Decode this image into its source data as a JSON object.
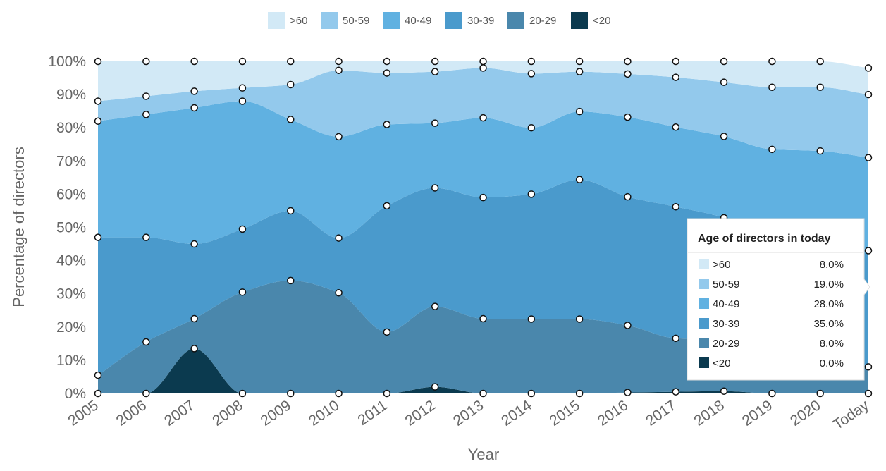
{
  "chart_data": {
    "type": "area",
    "stacking": "percent",
    "xlabel": "Year",
    "ylabel": "Percentage of directors",
    "ylim": [
      0,
      100
    ],
    "y_ticks": [
      "0%",
      "10%",
      "20%",
      "30%",
      "40%",
      "50%",
      "60%",
      "70%",
      "80%",
      "90%",
      "100%"
    ],
    "categories": [
      "2005",
      "2006",
      "2007",
      "2008",
      "2009",
      "2010",
      "2011",
      "2012",
      "2013",
      "2014",
      "2015",
      "2016",
      "2017",
      "2018",
      "2019",
      "2020",
      "Today"
    ],
    "legend_position": "top-center",
    "series": [
      {
        "name": "<20",
        "color": "#0b3a4f",
        "values": [
          0,
          0,
          13.5,
          0,
          0,
          0,
          0,
          2,
          0,
          0,
          0,
          0.3,
          0.5,
          0.7,
          0,
          0,
          0
        ]
      },
      {
        "name": "20-29",
        "color": "#4a87ac",
        "values": [
          5.5,
          15.5,
          9,
          30.5,
          34,
          30.3,
          18.5,
          24.2,
          22.5,
          22.4,
          22.4,
          20.2,
          16.1,
          15.5,
          14.5,
          12.5,
          8
        ]
      },
      {
        "name": "30-39",
        "color": "#4a9acc",
        "values": [
          41.5,
          31.5,
          22.5,
          19,
          21,
          16.5,
          38,
          35.7,
          36.5,
          37.6,
          42,
          38.7,
          39.6,
          36.7,
          31.5,
          31,
          35
        ]
      },
      {
        "name": "40-49",
        "color": "#60b1e1",
        "values": [
          35,
          37,
          41,
          38.5,
          27.5,
          30.5,
          24.5,
          19.5,
          24,
          20,
          20.5,
          24,
          24,
          24.5,
          27.5,
          29.5,
          28
        ]
      },
      {
        "name": "50-59",
        "color": "#93c9ec",
        "values": [
          6,
          5.5,
          5,
          4,
          10.5,
          20,
          15.5,
          15.5,
          15,
          16.3,
          12,
          13,
          15,
          16.3,
          18.7,
          19.2,
          19
        ]
      },
      {
        "name": ">60",
        "color": "#d2e9f6",
        "values": [
          12,
          10.5,
          9,
          8,
          7,
          2.7,
          3.5,
          3.1,
          2,
          3.7,
          3.1,
          3.8,
          4.8,
          6.3,
          7.8,
          7.8,
          8
        ]
      }
    ],
    "tooltip": {
      "title": "Age of directors in today",
      "rows": [
        {
          "label": ">60",
          "value": "8.0%",
          "color": "#d2e9f6"
        },
        {
          "label": "50-59",
          "value": "19.0%",
          "color": "#93c9ec"
        },
        {
          "label": "40-49",
          "value": "28.0%",
          "color": "#60b1e1"
        },
        {
          "label": "30-39",
          "value": "35.0%",
          "color": "#4a9acc"
        },
        {
          "label": "20-29",
          "value": "8.0%",
          "color": "#4a87ac"
        },
        {
          "label": "<20",
          "value": "0.0%",
          "color": "#0b3a4f"
        }
      ]
    }
  }
}
